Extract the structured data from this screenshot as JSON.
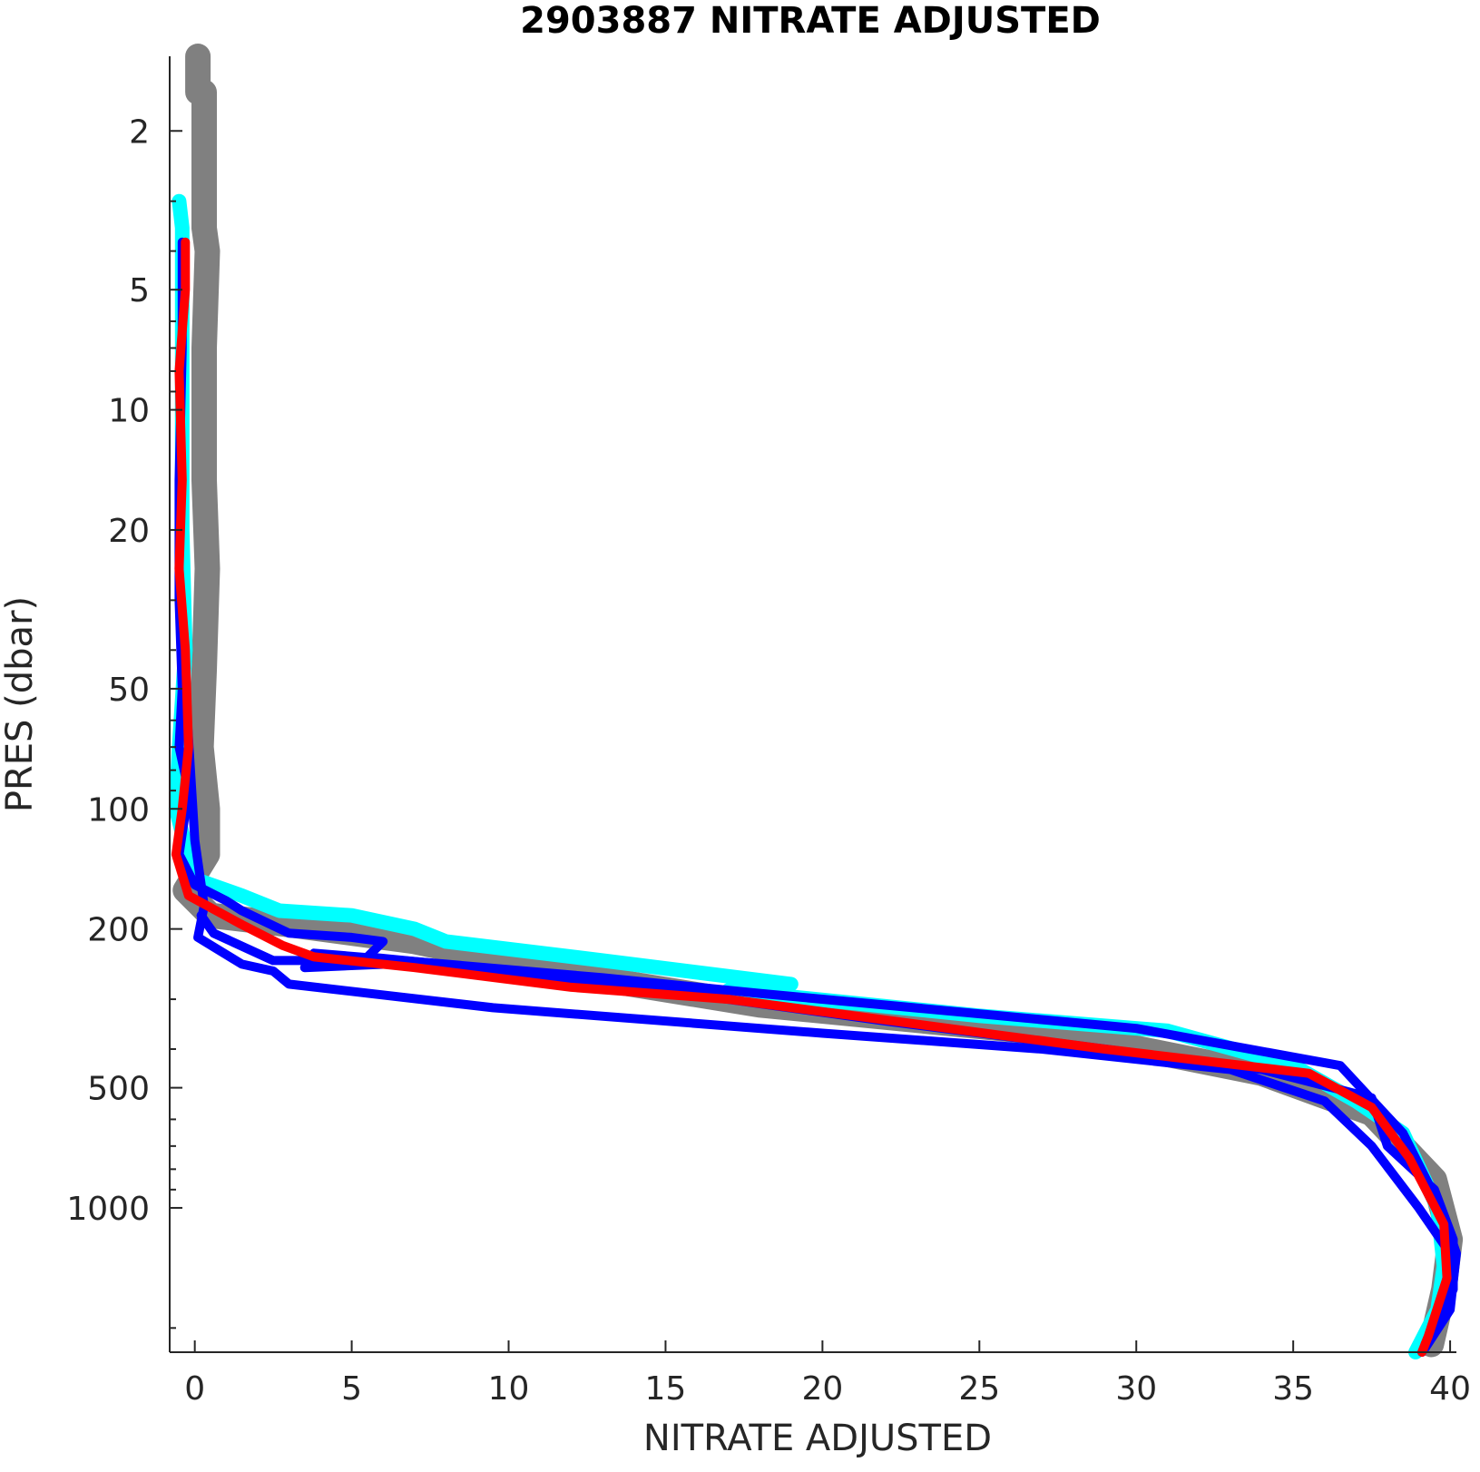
{
  "chart_data": {
    "type": "line",
    "title": "2903887  NITRATE ADJUSTED",
    "xlabel": "NITRATE ADJUSTED",
    "ylabel": "PRES (dbar)",
    "xlim": [
      -0.8,
      40.2
    ],
    "ylim": [
      1.3,
      2300
    ],
    "y_scale": "log",
    "y_reversed": true,
    "x_ticks": [
      0,
      5,
      10,
      15,
      20,
      25,
      30,
      35,
      40
    ],
    "x_tick_labels": [
      "0",
      "5",
      "10",
      "15",
      "20",
      "25",
      "30",
      "35",
      "40"
    ],
    "y_ticks": [
      2,
      5,
      10,
      20,
      50,
      100,
      200,
      500,
      1000
    ],
    "y_tick_labels": [
      "2",
      "5",
      "10",
      "20",
      "50",
      "100",
      "200",
      "500",
      "1000"
    ],
    "grid": false,
    "legend": "none",
    "series": [
      {
        "color": "#808080",
        "stroke_width": 28,
        "points": [
          [
            0.1,
            1.3
          ],
          [
            0.1,
            1.6
          ],
          [
            0.3,
            1.6
          ],
          [
            0.3,
            3.5
          ],
          [
            0.4,
            4
          ],
          [
            0.3,
            7
          ],
          [
            0.3,
            15
          ],
          [
            0.4,
            25
          ],
          [
            0.3,
            45
          ],
          [
            0.2,
            70
          ],
          [
            0.4,
            100
          ],
          [
            0.4,
            130
          ],
          [
            -0.3,
            160
          ],
          [
            0.5,
            185
          ],
          [
            3,
            195
          ],
          [
            7,
            215
          ],
          [
            12,
            260
          ],
          [
            18,
            310
          ],
          [
            28,
            370
          ],
          [
            34,
            460
          ],
          [
            37.5,
            580
          ],
          [
            39.5,
            850
          ],
          [
            40,
            1200
          ],
          [
            39.8,
            1600
          ],
          [
            39.4,
            2200
          ]
        ]
      },
      {
        "color": "#00ffff",
        "stroke_width": 16,
        "points": [
          [
            -0.5,
            3.0
          ],
          [
            -0.4,
            3.5
          ],
          [
            -0.4,
            6
          ],
          [
            -0.4,
            10
          ],
          [
            -0.4,
            20
          ],
          [
            -0.3,
            40
          ],
          [
            -0.5,
            70
          ],
          [
            -0.6,
            100
          ],
          [
            -0.4,
            115
          ],
          [
            0,
            150
          ],
          [
            1.5,
            165
          ],
          [
            2.7,
            180
          ],
          [
            5,
            185
          ],
          [
            7,
            200
          ],
          [
            8,
            215
          ],
          [
            13,
            240
          ],
          [
            19,
            275
          ],
          [
            17,
            285
          ],
          [
            25,
            330
          ],
          [
            31,
            360
          ],
          [
            35,
            440
          ],
          [
            37,
            540
          ],
          [
            38.5,
            650
          ],
          [
            39.6,
            1000
          ],
          [
            39.8,
            1400
          ],
          [
            39.6,
            1800
          ],
          [
            38.9,
            2300
          ]
        ]
      },
      {
        "color": "#0000ff",
        "stroke_width": 10,
        "points": [
          [
            -0.4,
            3.8
          ],
          [
            -0.4,
            7
          ],
          [
            -0.5,
            15
          ],
          [
            -0.5,
            30
          ],
          [
            -0.4,
            50
          ],
          [
            -0.5,
            70
          ],
          [
            -0.2,
            90
          ],
          [
            -0.5,
            130
          ],
          [
            0,
            155
          ],
          [
            1,
            170
          ],
          [
            1.5,
            180
          ],
          [
            3,
            205
          ],
          [
            5,
            210
          ],
          [
            6,
            215
          ],
          [
            5.5,
            235
          ],
          [
            9,
            250
          ],
          [
            12,
            270
          ],
          [
            17,
            300
          ],
          [
            22,
            340
          ],
          [
            29,
            400
          ],
          [
            34,
            450
          ],
          [
            37.5,
            530
          ],
          [
            38,
            700
          ],
          [
            39.5,
            900
          ],
          [
            40.1,
            1200
          ],
          [
            40.1,
            1600
          ],
          [
            39.1,
            2300
          ]
        ]
      },
      {
        "color": "#0000ff",
        "stroke_width": 10,
        "points": [
          [
            -0.3,
            50
          ],
          [
            0,
            120
          ],
          [
            0.3,
            175
          ],
          [
            0.1,
            210
          ],
          [
            1.5,
            245
          ],
          [
            2.5,
            255
          ],
          [
            3,
            275
          ],
          [
            9.5,
            315
          ],
          [
            20,
            365
          ],
          [
            27,
            400
          ],
          [
            33,
            450
          ],
          [
            36,
            540
          ],
          [
            37.5,
            700
          ],
          [
            39,
            1000
          ],
          [
            40,
            1300
          ],
          [
            39.8,
            1700
          ],
          [
            39.2,
            2200
          ]
        ]
      },
      {
        "color": "#0000ff",
        "stroke_width": 10,
        "points": [
          [
            0.2,
            185
          ],
          [
            0.6,
            205
          ],
          [
            2.5,
            240
          ],
          [
            6,
            240
          ],
          [
            6.1,
            245
          ],
          [
            3.5,
            250
          ],
          [
            3.8,
            230
          ],
          [
            8,
            245
          ],
          [
            13,
            265
          ],
          [
            18,
            290
          ],
          [
            30,
            355
          ],
          [
            36.5,
            440
          ],
          [
            38.5,
            650
          ],
          [
            39.7,
            1000
          ],
          [
            40.2,
            1300
          ],
          [
            40,
            1800
          ],
          [
            39.2,
            2250
          ]
        ]
      },
      {
        "color": "#ff0000",
        "stroke_width": 10,
        "points": [
          [
            -0.3,
            3.8
          ],
          [
            -0.3,
            5
          ],
          [
            -0.5,
            8
          ],
          [
            -0.4,
            15
          ],
          [
            -0.5,
            25
          ],
          [
            -0.3,
            40
          ],
          [
            -0.2,
            70
          ],
          [
            -0.4,
            100
          ],
          [
            -0.6,
            130
          ],
          [
            -0.2,
            165
          ],
          [
            1.5,
            195
          ],
          [
            2.8,
            220
          ],
          [
            3.8,
            235
          ],
          [
            7,
            250
          ],
          [
            12,
            280
          ],
          [
            17,
            300
          ],
          [
            21,
            330
          ],
          [
            29,
            400
          ],
          [
            35.5,
            460
          ],
          [
            37.5,
            560
          ],
          [
            38.7,
            750
          ],
          [
            39.8,
            1100
          ],
          [
            39.9,
            1500
          ],
          [
            39.3,
            2100
          ],
          [
            39.1,
            2300
          ]
        ]
      }
    ]
  }
}
